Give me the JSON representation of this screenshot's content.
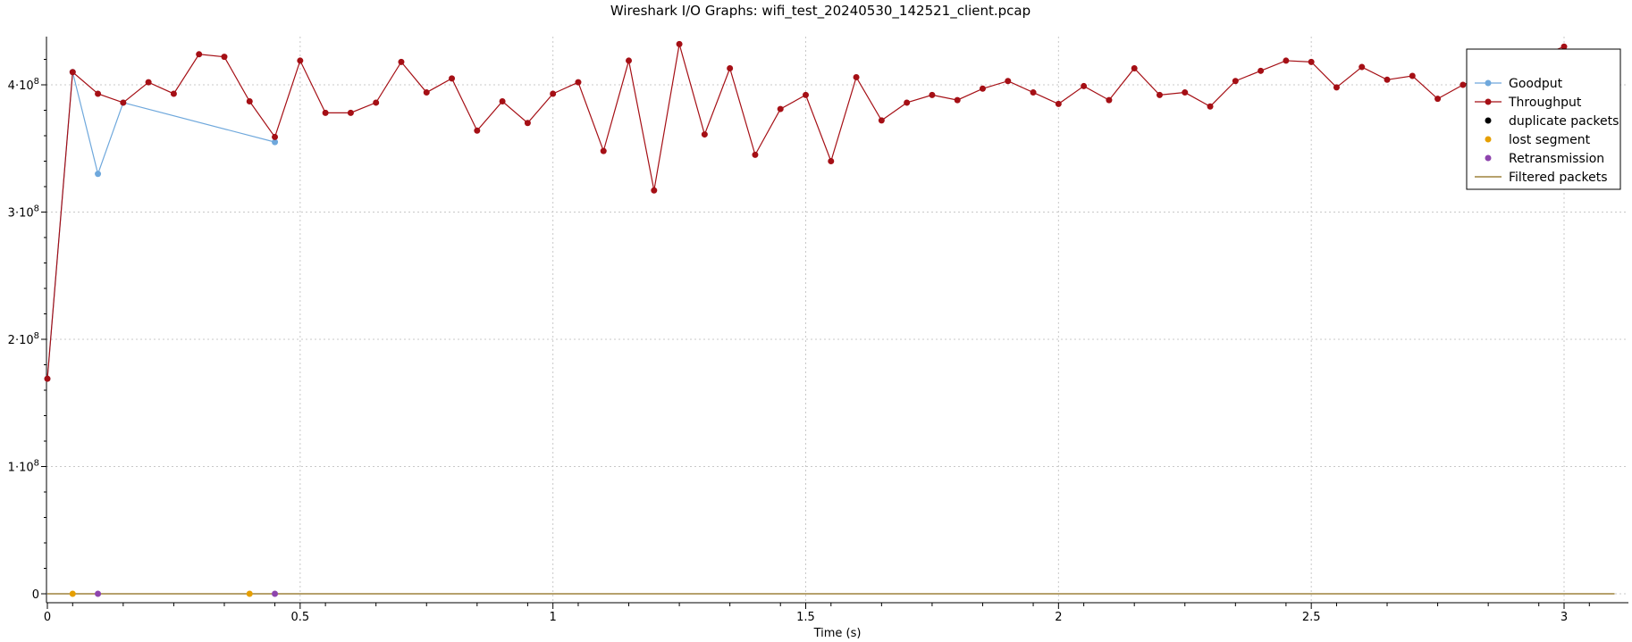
{
  "chart_data": {
    "type": "line",
    "title": "Wireshark I/O Graphs: wifi_test_20240530_142521_client.pcap",
    "xlabel": "Time (s)",
    "ylabel": "",
    "xlim": [
      0,
      3.15
    ],
    "ylim": [
      0,
      430000000
    ],
    "x_ticks": [
      {
        "value": 0,
        "label": "0"
      },
      {
        "value": 0.5,
        "label": "0.5"
      },
      {
        "value": 1,
        "label": "1"
      },
      {
        "value": 1.5,
        "label": "1.5"
      },
      {
        "value": 2,
        "label": "2"
      },
      {
        "value": 2.5,
        "label": "2.5"
      },
      {
        "value": 3,
        "label": "3"
      }
    ],
    "y_ticks": [
      {
        "value": 0,
        "base": "0",
        "exp": ""
      },
      {
        "value": 100000000,
        "base": "1·10",
        "exp": "8"
      },
      {
        "value": 200000000,
        "base": "2·10",
        "exp": "8"
      },
      {
        "value": 300000000,
        "base": "3·10",
        "exp": "8"
      },
      {
        "value": 400000000,
        "base": "4·10",
        "exp": "8"
      }
    ],
    "grid": true,
    "legend_position": "top-right",
    "series": [
      {
        "name": "Goodput",
        "kind": "line-marker",
        "color": "#6fa8dc",
        "x": [
          0,
          0.05,
          0.1,
          0.15,
          0.45
        ],
        "y": [
          169000000,
          410000000,
          330000000,
          386000000,
          355000000
        ]
      },
      {
        "name": "Throughput",
        "kind": "line-marker",
        "color": "#a50f15",
        "x": [
          0,
          0.05,
          0.1,
          0.15,
          0.2,
          0.25,
          0.3,
          0.35,
          0.4,
          0.45,
          0.5,
          0.55,
          0.6,
          0.65,
          0.7,
          0.75,
          0.8,
          0.85,
          0.9,
          0.95,
          1.0,
          1.05,
          1.1,
          1.15,
          1.2,
          1.25,
          1.3,
          1.35,
          1.4,
          1.45,
          1.5,
          1.55,
          1.6,
          1.65,
          1.7,
          1.75,
          1.8,
          1.85,
          1.9,
          1.95,
          2.0,
          2.05,
          2.1,
          2.15,
          2.2,
          2.25,
          2.3,
          2.35,
          2.4,
          2.45,
          2.5,
          2.55,
          2.6,
          2.65,
          2.7,
          2.75,
          2.8,
          3.0
        ],
        "y": [
          169000000,
          410000000,
          393000000,
          386000000,
          402000000,
          393000000,
          424000000,
          422000000,
          387000000,
          359000000,
          419000000,
          378000000,
          378000000,
          386000000,
          418000000,
          394000000,
          405000000,
          364000000,
          387000000,
          370000000,
          393000000,
          402000000,
          348000000,
          419000000,
          317000000,
          432000000,
          361000000,
          413000000,
          345000000,
          381000000,
          392000000,
          340000000,
          406000000,
          372000000,
          386000000,
          392000000,
          388000000,
          397000000,
          403000000,
          394000000,
          385000000,
          399000000,
          388000000,
          413000000,
          392000000,
          394000000,
          383000000,
          403000000,
          411000000,
          419000000,
          418000000,
          398000000,
          414000000,
          404000000,
          407000000,
          389000000,
          400000000,
          430000000
        ]
      },
      {
        "name": "duplicate packets",
        "kind": "marker",
        "color": "#000000",
        "x": [],
        "y": []
      },
      {
        "name": "lost segment",
        "kind": "marker",
        "color": "#e69f00",
        "x": [
          0.05,
          0.4
        ],
        "y": [
          0,
          0
        ]
      },
      {
        "name": "Retransmission",
        "kind": "marker",
        "color": "#8e44ad",
        "x": [
          0.1,
          0.45
        ],
        "y": [
          0,
          0
        ]
      },
      {
        "name": "Filtered packets",
        "kind": "line",
        "color": "#8b6914",
        "x": [
          0,
          3.1
        ],
        "y": [
          0,
          0
        ]
      }
    ]
  }
}
